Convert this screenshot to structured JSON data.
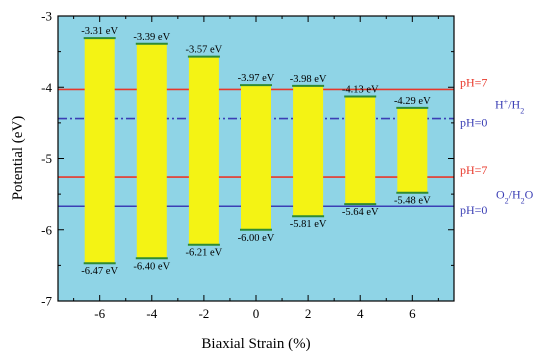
{
  "chart_data": {
    "type": "bar",
    "title": "",
    "xlabel": "Biaxial Strain (%)",
    "ylabel": "Potential (eV)",
    "x": [
      -6,
      -4,
      -2,
      0,
      2,
      4,
      6
    ],
    "x_tick_labels": [
      "-6",
      "-4",
      "-2",
      "0",
      "2",
      "4",
      "6"
    ],
    "y_ticks": [
      -3,
      -4,
      -5,
      -6,
      -7
    ],
    "y_tick_labels": [
      "-3",
      "-4",
      "-5",
      "-6",
      "-7"
    ],
    "xlim": [
      -7.6,
      7.6
    ],
    "ylim": [
      -7,
      -3
    ],
    "cbm": [
      -3.31,
      -3.39,
      -3.57,
      -3.97,
      -3.98,
      -4.13,
      -4.29
    ],
    "vbm": [
      -6.47,
      -6.4,
      -6.21,
      -6.0,
      -5.81,
      -5.64,
      -5.48
    ],
    "cbm_labels": [
      "-3.31 eV",
      "-3.39 eV",
      "-3.57 eV",
      "-3.97 eV",
      "-3.98 eV",
      "-4.13 eV",
      "-4.29 eV"
    ],
    "vbm_labels": [
      "-6.47 eV",
      "-6.40 eV",
      "-6.21 eV",
      "-6.00 eV",
      "-5.81 eV",
      "-5.64 eV",
      "-5.48 eV"
    ],
    "reference_lines": [
      {
        "potential": -4.03,
        "label": "pH=7",
        "color": "#e8382b",
        "style": "solid"
      },
      {
        "potential": -4.44,
        "label": "pH=0",
        "color": "#3b3fb5",
        "style": "dashdot"
      },
      {
        "potential": -5.26,
        "label": "pH=7",
        "color": "#e8382b",
        "style": "solid"
      },
      {
        "potential": -5.67,
        "label": "pH=0",
        "color": "#3b3fb5",
        "style": "solid"
      }
    ],
    "couple_labels": [
      {
        "label": "H+/H2",
        "main": "H",
        "sup": "+",
        "rest": "/H",
        "sub": "2"
      },
      {
        "label": "O2/H2O",
        "main": "O",
        "sub": "2",
        "rest": "/H",
        "sub2": "2",
        "tail": "O"
      }
    ],
    "colors": {
      "plot_background": "#8fd4e6",
      "bar_fill": "#f4f314",
      "band_edge": "#2e8b35",
      "axis": "#000000"
    },
    "grid": false
  }
}
